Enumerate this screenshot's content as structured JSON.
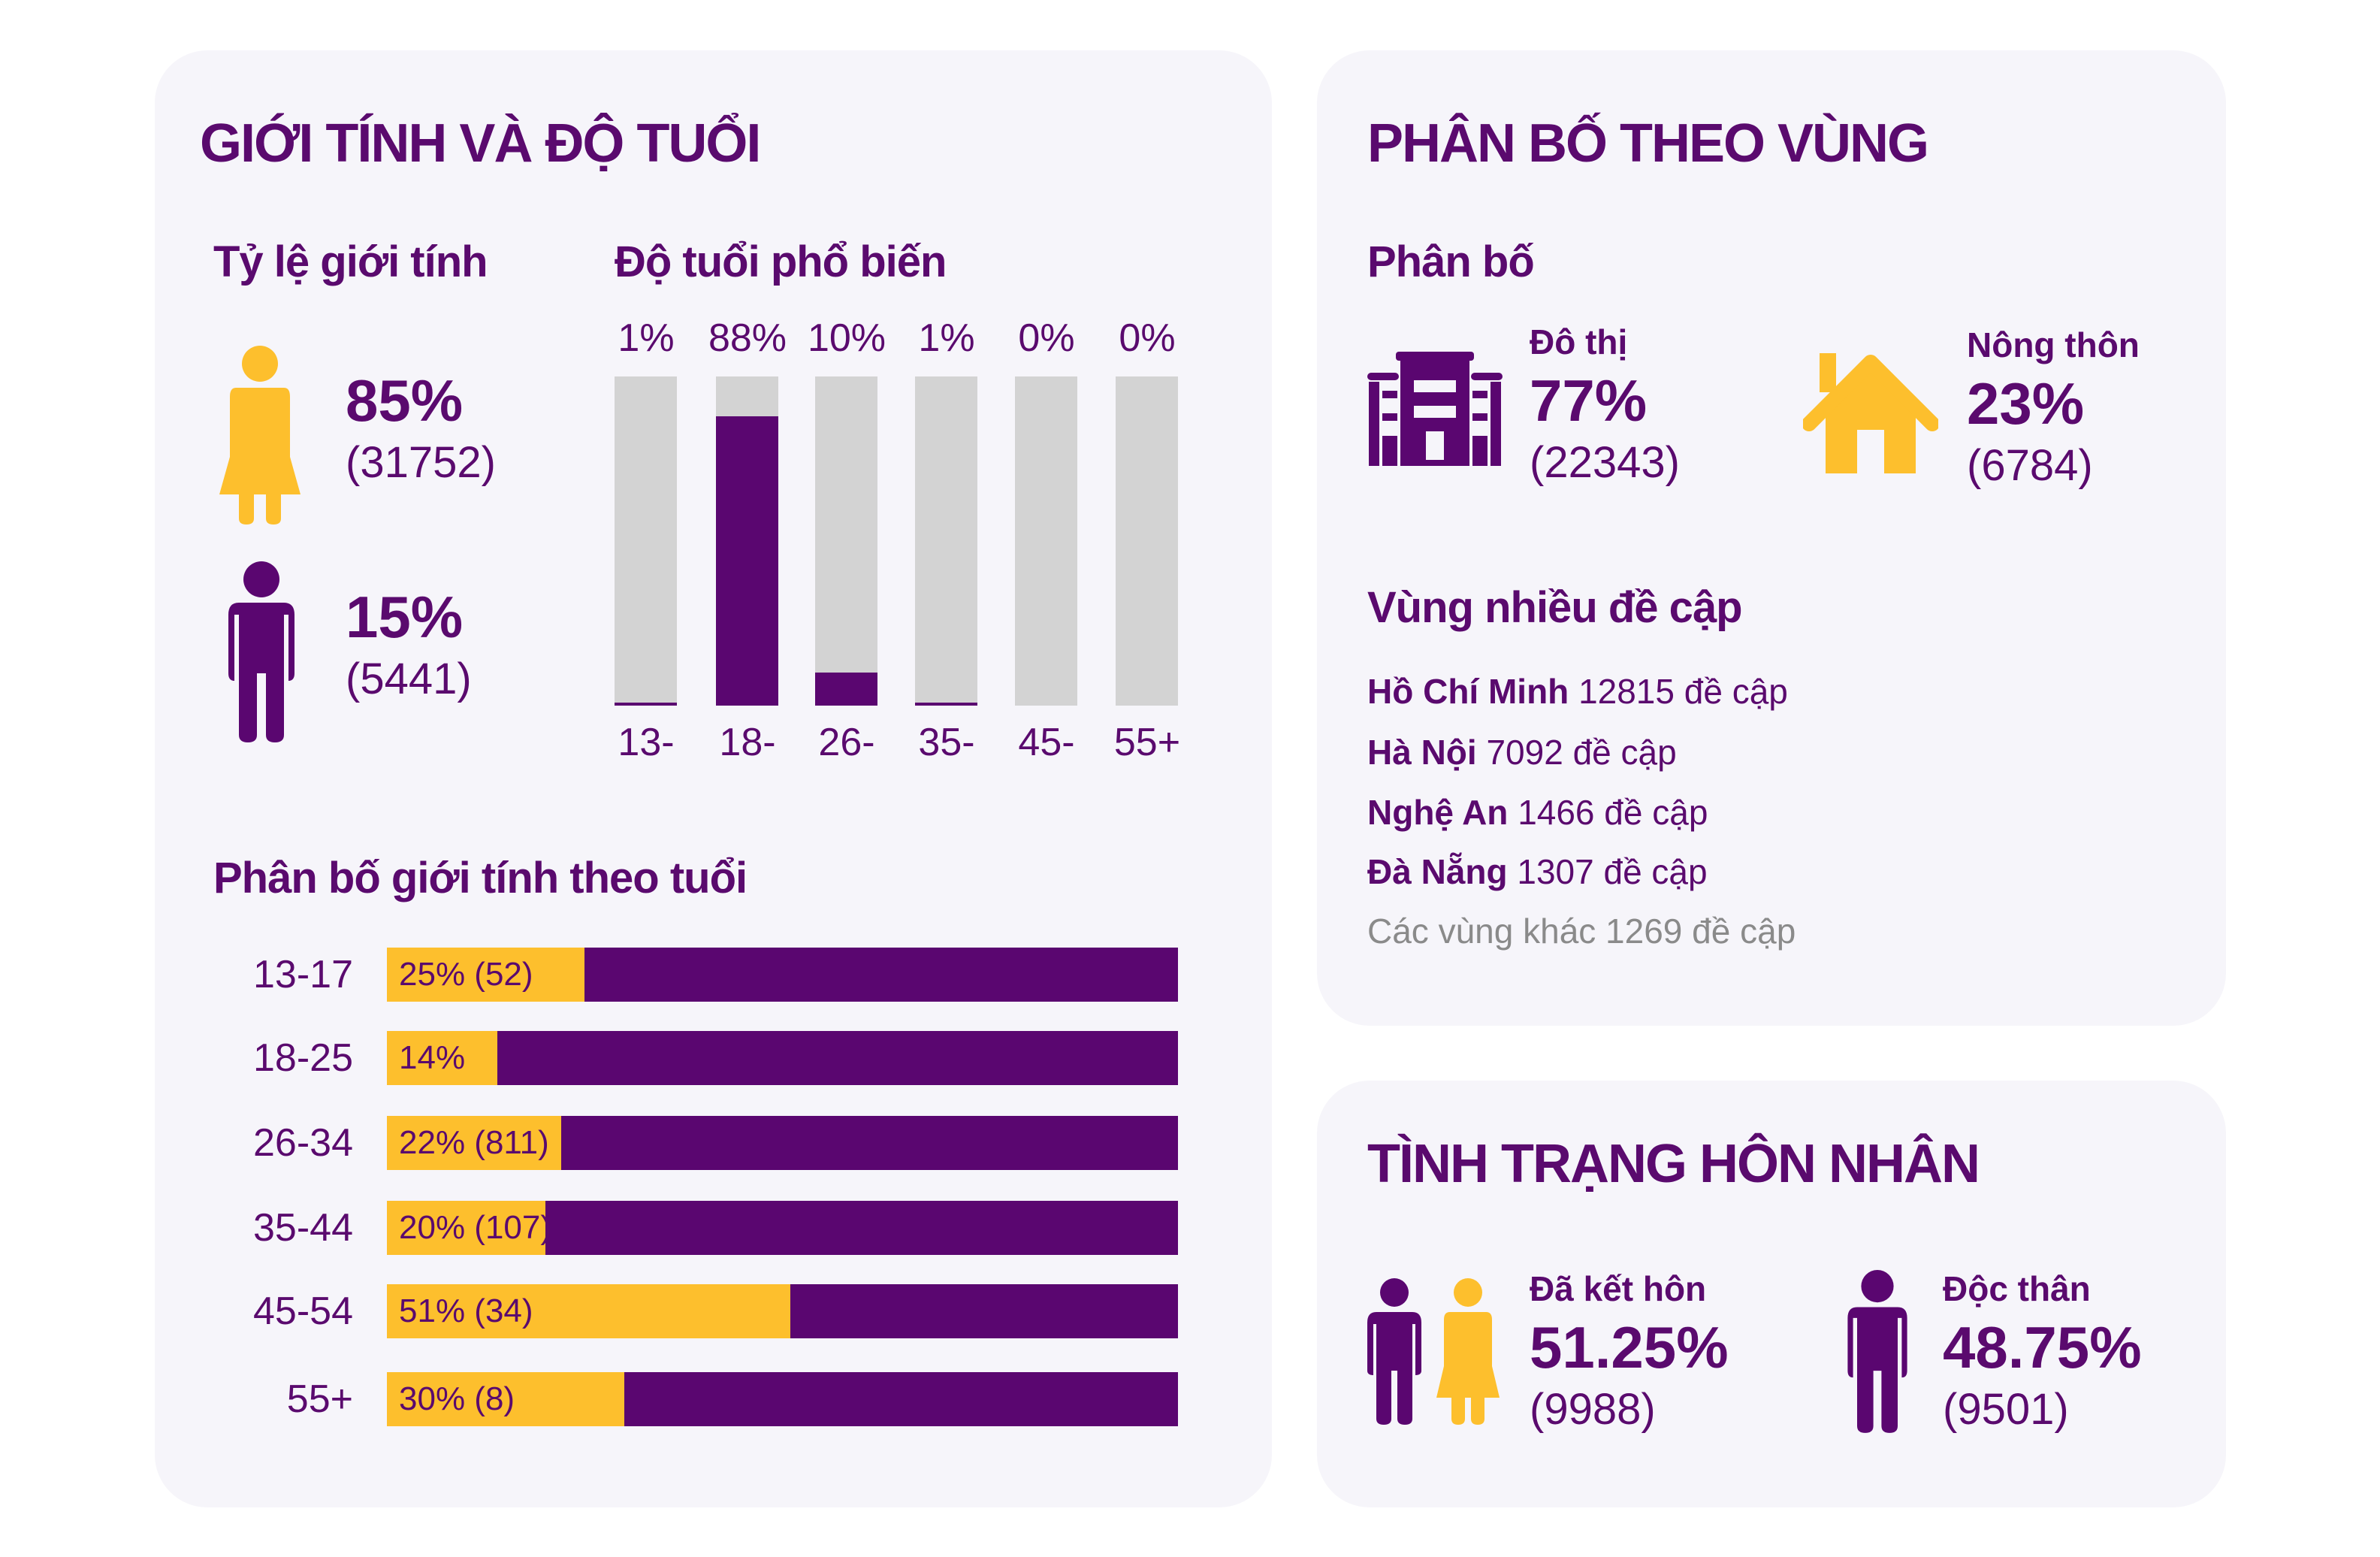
{
  "colors": {
    "purple": "#5a0670",
    "yellow": "#fdbf2d",
    "gray": "#d3d3d3",
    "card": "#f6f5fa"
  },
  "gender_age": {
    "title": "GIỚI TÍNH VÀ ĐỘ TUỔI",
    "gender_ratio": {
      "title": "Tỷ lệ giới tính",
      "female": {
        "icon": "female-icon",
        "percent": "85%",
        "count": "(31752)"
      },
      "male": {
        "icon": "male-icon",
        "percent": "15%",
        "count": "(5441)"
      }
    },
    "popular_age": {
      "title": "Độ tuổi phổ biến"
    },
    "gender_by_age": {
      "title": "Phân bố giới tính theo tuổi"
    }
  },
  "chart_data": [
    {
      "type": "bar",
      "title": "Độ tuổi phổ biến",
      "categories": [
        "13-",
        "18-",
        "26-",
        "35-",
        "45-",
        "55+"
      ],
      "values": [
        1,
        88,
        10,
        1,
        0,
        0
      ],
      "value_labels": [
        "1%",
        "88%",
        "10%",
        "1%",
        "0%",
        "0%"
      ],
      "ylim": [
        0,
        100
      ]
    },
    {
      "type": "bar",
      "orientation": "horizontal",
      "stacked": true,
      "title": "Phân bố giới tính theo tuổi",
      "categories": [
        "13-17",
        "18-25",
        "26-34",
        "35-44",
        "45-54",
        "55+"
      ],
      "values": [
        25,
        14,
        22,
        20,
        51,
        30
      ],
      "value_labels": [
        "25% (52)",
        "14%",
        "22% (811)",
        "20% (107)",
        "51% (34)",
        "30% (8)"
      ],
      "xlim": [
        0,
        100
      ]
    }
  ],
  "region": {
    "title": "PHÂN BỐ THEO VÙNG",
    "distribution_title": "Phân bố",
    "urban": {
      "icon": "building-icon",
      "label": "Đô thị",
      "percent": "77%",
      "count": "(22343)"
    },
    "rural": {
      "icon": "house-icon",
      "label": "Nông thôn",
      "percent": "23%",
      "count": "(6784)"
    },
    "mentions_title": "Vùng nhiều đề cập",
    "mentions": [
      {
        "name": "Hồ Chí Minh",
        "text": "12815 đề cập"
      },
      {
        "name": "Hà Nội",
        "text": "7092 đề cập"
      },
      {
        "name": "Nghệ An",
        "text": "1466 đề cập"
      },
      {
        "name": "Đà Nẵng",
        "text": "1307 đề cập"
      }
    ],
    "other": "Các vùng khác 1269 đề cập"
  },
  "marital": {
    "title": "TÌNH TRẠNG HÔN NHÂN",
    "married": {
      "icon": "couple-icon",
      "label": "Đã kết hôn",
      "percent": "51.25%",
      "count": "(9988)"
    },
    "single": {
      "icon": "single-person-icon",
      "label": "Độc thân",
      "percent": "48.75%",
      "count": "(9501)"
    }
  }
}
